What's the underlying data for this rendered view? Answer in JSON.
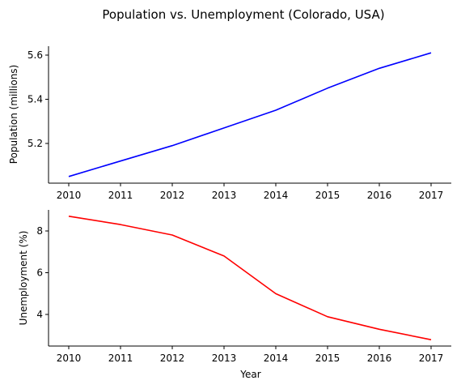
{
  "figure": {
    "suptitle": "Population vs. Unemployment (Colorado, USA)"
  },
  "chart_data": [
    {
      "type": "line",
      "title": "",
      "xlabel": "",
      "ylabel": "Population (millions)",
      "x": [
        2010,
        2011,
        2012,
        2013,
        2014,
        2015,
        2016,
        2017
      ],
      "xticks": [
        "2010",
        "2011",
        "2012",
        "2013",
        "2014",
        "2015",
        "2016",
        "2017"
      ],
      "yticks": [
        5.2,
        5.4,
        5.6
      ],
      "ytick_labels": [
        "5.2",
        "5.4",
        "5.6"
      ],
      "ylim": [
        5.02,
        5.64
      ],
      "series": [
        {
          "color": "#0000ff",
          "values": [
            5.05,
            5.12,
            5.19,
            5.27,
            5.35,
            5.45,
            5.54,
            5.61
          ]
        }
      ],
      "grid": false
    },
    {
      "type": "line",
      "title": "",
      "xlabel": "Year",
      "ylabel": "Unemployment (%)",
      "x": [
        2010,
        2011,
        2012,
        2013,
        2014,
        2015,
        2016,
        2017
      ],
      "xticks": [
        "2010",
        "2011",
        "2012",
        "2013",
        "2014",
        "2015",
        "2016",
        "2017"
      ],
      "yticks": [
        4,
        6,
        8
      ],
      "ytick_labels": [
        "4",
        "6",
        "8"
      ],
      "ylim": [
        2.5,
        9.0
      ],
      "series": [
        {
          "color": "#ff0000",
          "values": [
            8.7,
            8.3,
            7.8,
            6.8,
            5.0,
            3.9,
            3.3,
            2.8
          ]
        }
      ],
      "grid": false
    }
  ]
}
